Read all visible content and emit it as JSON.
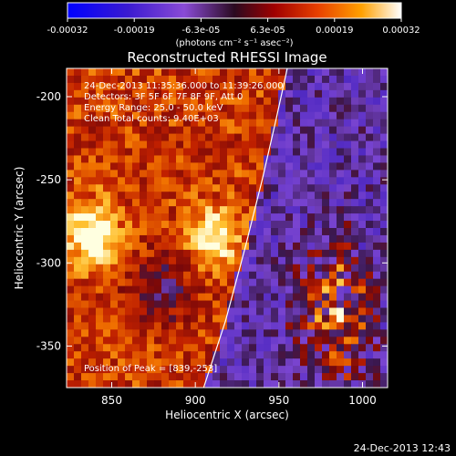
{
  "chart_data": {
    "type": "heatmap",
    "title": "Reconstructed RHESSI Image",
    "xlabel": "Heliocentric X (arcsec)",
    "ylabel": "Heliocentric Y (arcsec)",
    "xlim": [
      823,
      1015
    ],
    "ylim": [
      -375,
      -183
    ],
    "x_ticks": [
      850,
      900,
      950,
      1000
    ],
    "y_ticks": [
      -350,
      -300,
      -250,
      -200
    ],
    "colorbar": {
      "range": [
        -0.00032,
        0.00032
      ],
      "tick_labels": [
        "-0.00032",
        "-0.00019",
        "-6.3e-05",
        "6.3e-05",
        "0.00019",
        "0.00032"
      ],
      "unit": "(photons cm⁻² s⁻¹ asec⁻²)",
      "colors": [
        "#0000ff",
        "#5a2bb0",
        "#8a4bd6",
        "#4a1a3a",
        "#b01010",
        "#e85000",
        "#ffb000",
        "#ffffff"
      ]
    },
    "annotations": [
      "24-Dec-2013 11:35:36.000 to 11:39:26.000",
      "Detectors: 3F 5F 6F 7F 8F 9F, Att 0",
      "Energy Range: 25.0 - 50.0 keV",
      "Clean     Total counts: 9.40E+03"
    ],
    "peak_label": "Position of Peak = [839,-253]",
    "peak": {
      "x": 839,
      "y": -253
    },
    "limb_curve": [
      [
        955,
        -183
      ],
      [
        948,
        -215
      ],
      [
        940,
        -250
      ],
      [
        930,
        -290
      ],
      [
        918,
        -335
      ],
      [
        905,
        -375
      ]
    ]
  },
  "footer": {
    "timestamp": "24-Dec-2013 12:43"
  }
}
